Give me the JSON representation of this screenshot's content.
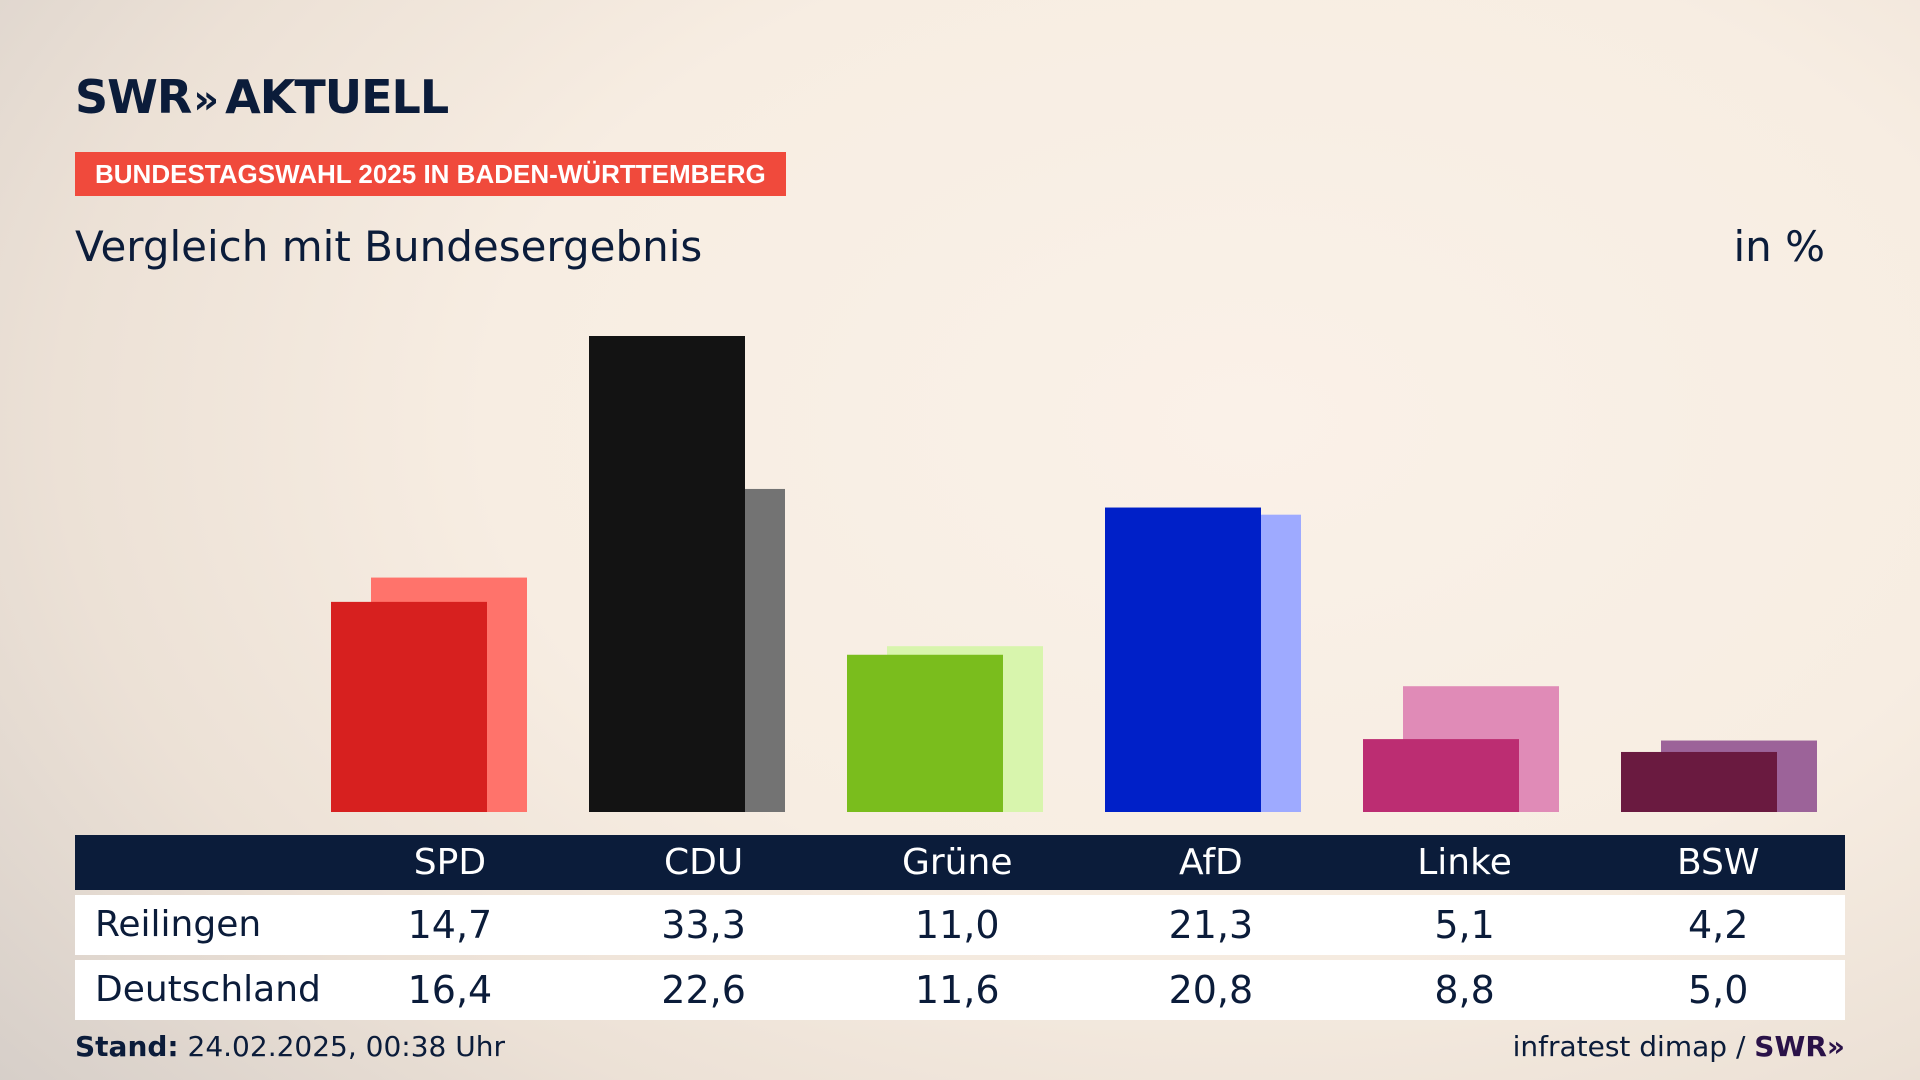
{
  "header": {
    "logo_text": "SWR",
    "logo_chevrons": "»",
    "logo_suffix": "AKTUELL",
    "badge": "BUNDESTAGSWAHL 2025 IN BADEN-WÜRTTEMBERG",
    "subtitle": "Vergleich mit Bundesergebnis",
    "unit": "in %"
  },
  "chart_data": {
    "type": "bar",
    "categories": [
      "SPD",
      "CDU",
      "Grüne",
      "AfD",
      "Linke",
      "BSW"
    ],
    "series": [
      {
        "name": "Reilingen",
        "values": [
          14.7,
          33.3,
          11.0,
          21.3,
          5.1,
          4.2
        ]
      },
      {
        "name": "Deutschland",
        "values": [
          16.4,
          22.6,
          11.6,
          20.8,
          8.8,
          5.0
        ]
      }
    ],
    "display_values": {
      "Reilingen": [
        "14,7",
        "33,3",
        "11,0",
        "21,3",
        "5,1",
        "4,2"
      ],
      "Deutschland": [
        "16,4",
        "22,6",
        "11,6",
        "20,8",
        "8,8",
        "5,0"
      ]
    },
    "colors_front": [
      "#d7201f",
      "#131313",
      "#7abd1d",
      "#0020c8",
      "#bc2d72",
      "#6a1a40"
    ],
    "colors_back": [
      "#ff736b",
      "#737373",
      "#d8f5ad",
      "#9eaaff",
      "#e08bb7",
      "#9c6399"
    ],
    "ylim": [
      0,
      34
    ]
  },
  "footer": {
    "stand_label": "Stand:",
    "stand_value": "24.02.2025, 00:38 Uhr",
    "source": "infratest dimap /",
    "source_logo": "SWR»"
  }
}
